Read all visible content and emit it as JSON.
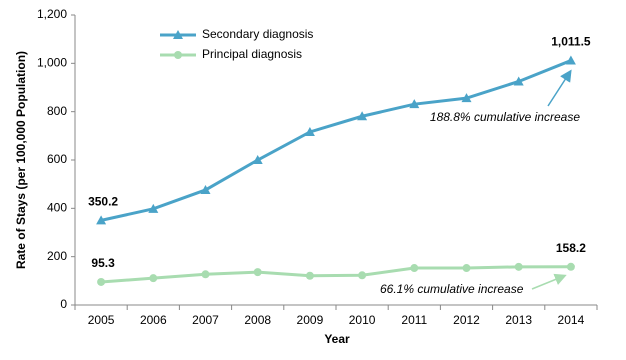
{
  "chart_data": {
    "type": "line",
    "y_label": "Rate of Stays (per 100,000 Population)",
    "x_label": "Year",
    "categories": [
      "2005",
      "2006",
      "2007",
      "2008",
      "2009",
      "2010",
      "2011",
      "2012",
      "2013",
      "2014"
    ],
    "series": [
      {
        "name": "Secondary diagnosis",
        "color": "#4aa3c8",
        "marker": "triangle",
        "values": [
          350.2,
          398,
          476,
          600,
          716,
          781,
          831,
          856,
          925,
          1011.5
        ],
        "value_labels": [
          "350.2",
          null,
          null,
          null,
          null,
          null,
          null,
          null,
          null,
          "1,011.5"
        ]
      },
      {
        "name": "Principal diagnosis",
        "color": "#a8dcb0",
        "marker": "circle",
        "values": [
          95.3,
          111,
          127,
          136,
          121,
          123,
          153,
          153,
          158,
          158.2
        ],
        "value_labels": [
          "95.3",
          null,
          null,
          null,
          null,
          null,
          null,
          null,
          null,
          "158.2"
        ]
      }
    ],
    "ylim": [
      0,
      1200
    ],
    "yticks": [
      0,
      200,
      400,
      600,
      800,
      {
        "value": 1000,
        "label": "1,000"
      },
      {
        "value": 1200,
        "label": "1,200"
      }
    ],
    "grid": false,
    "legend": "top-left",
    "annotations": [
      "188.8% cumulative increase",
      "66.1% cumulative increase"
    ]
  }
}
